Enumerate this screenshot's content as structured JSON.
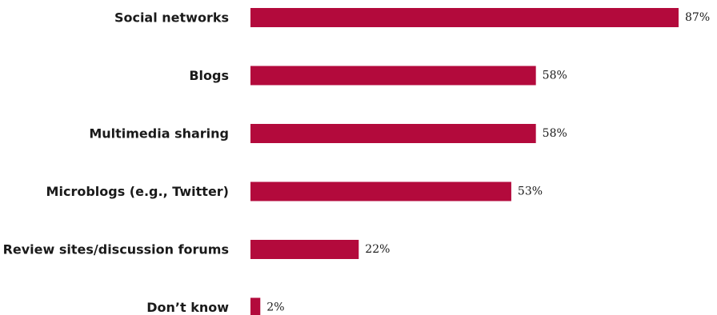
{
  "chart_data": {
    "type": "bar",
    "orientation": "horizontal",
    "categories": [
      "Social networks",
      "Blogs",
      "Multimedia sharing",
      "Microblogs (e.g., Twitter)",
      "Review sites/discussion forums",
      "Don’t know"
    ],
    "values": [
      87,
      58,
      58,
      53,
      22,
      2
    ],
    "value_labels": [
      "87%",
      "58%",
      "58%",
      "53%",
      "22%",
      "2%"
    ],
    "unit": "%",
    "bar_color": "#b30a3c",
    "title": "",
    "xlabel": "",
    "ylabel": "",
    "grid": false,
    "legend": "none",
    "xlim": [
      0,
      87
    ]
  }
}
